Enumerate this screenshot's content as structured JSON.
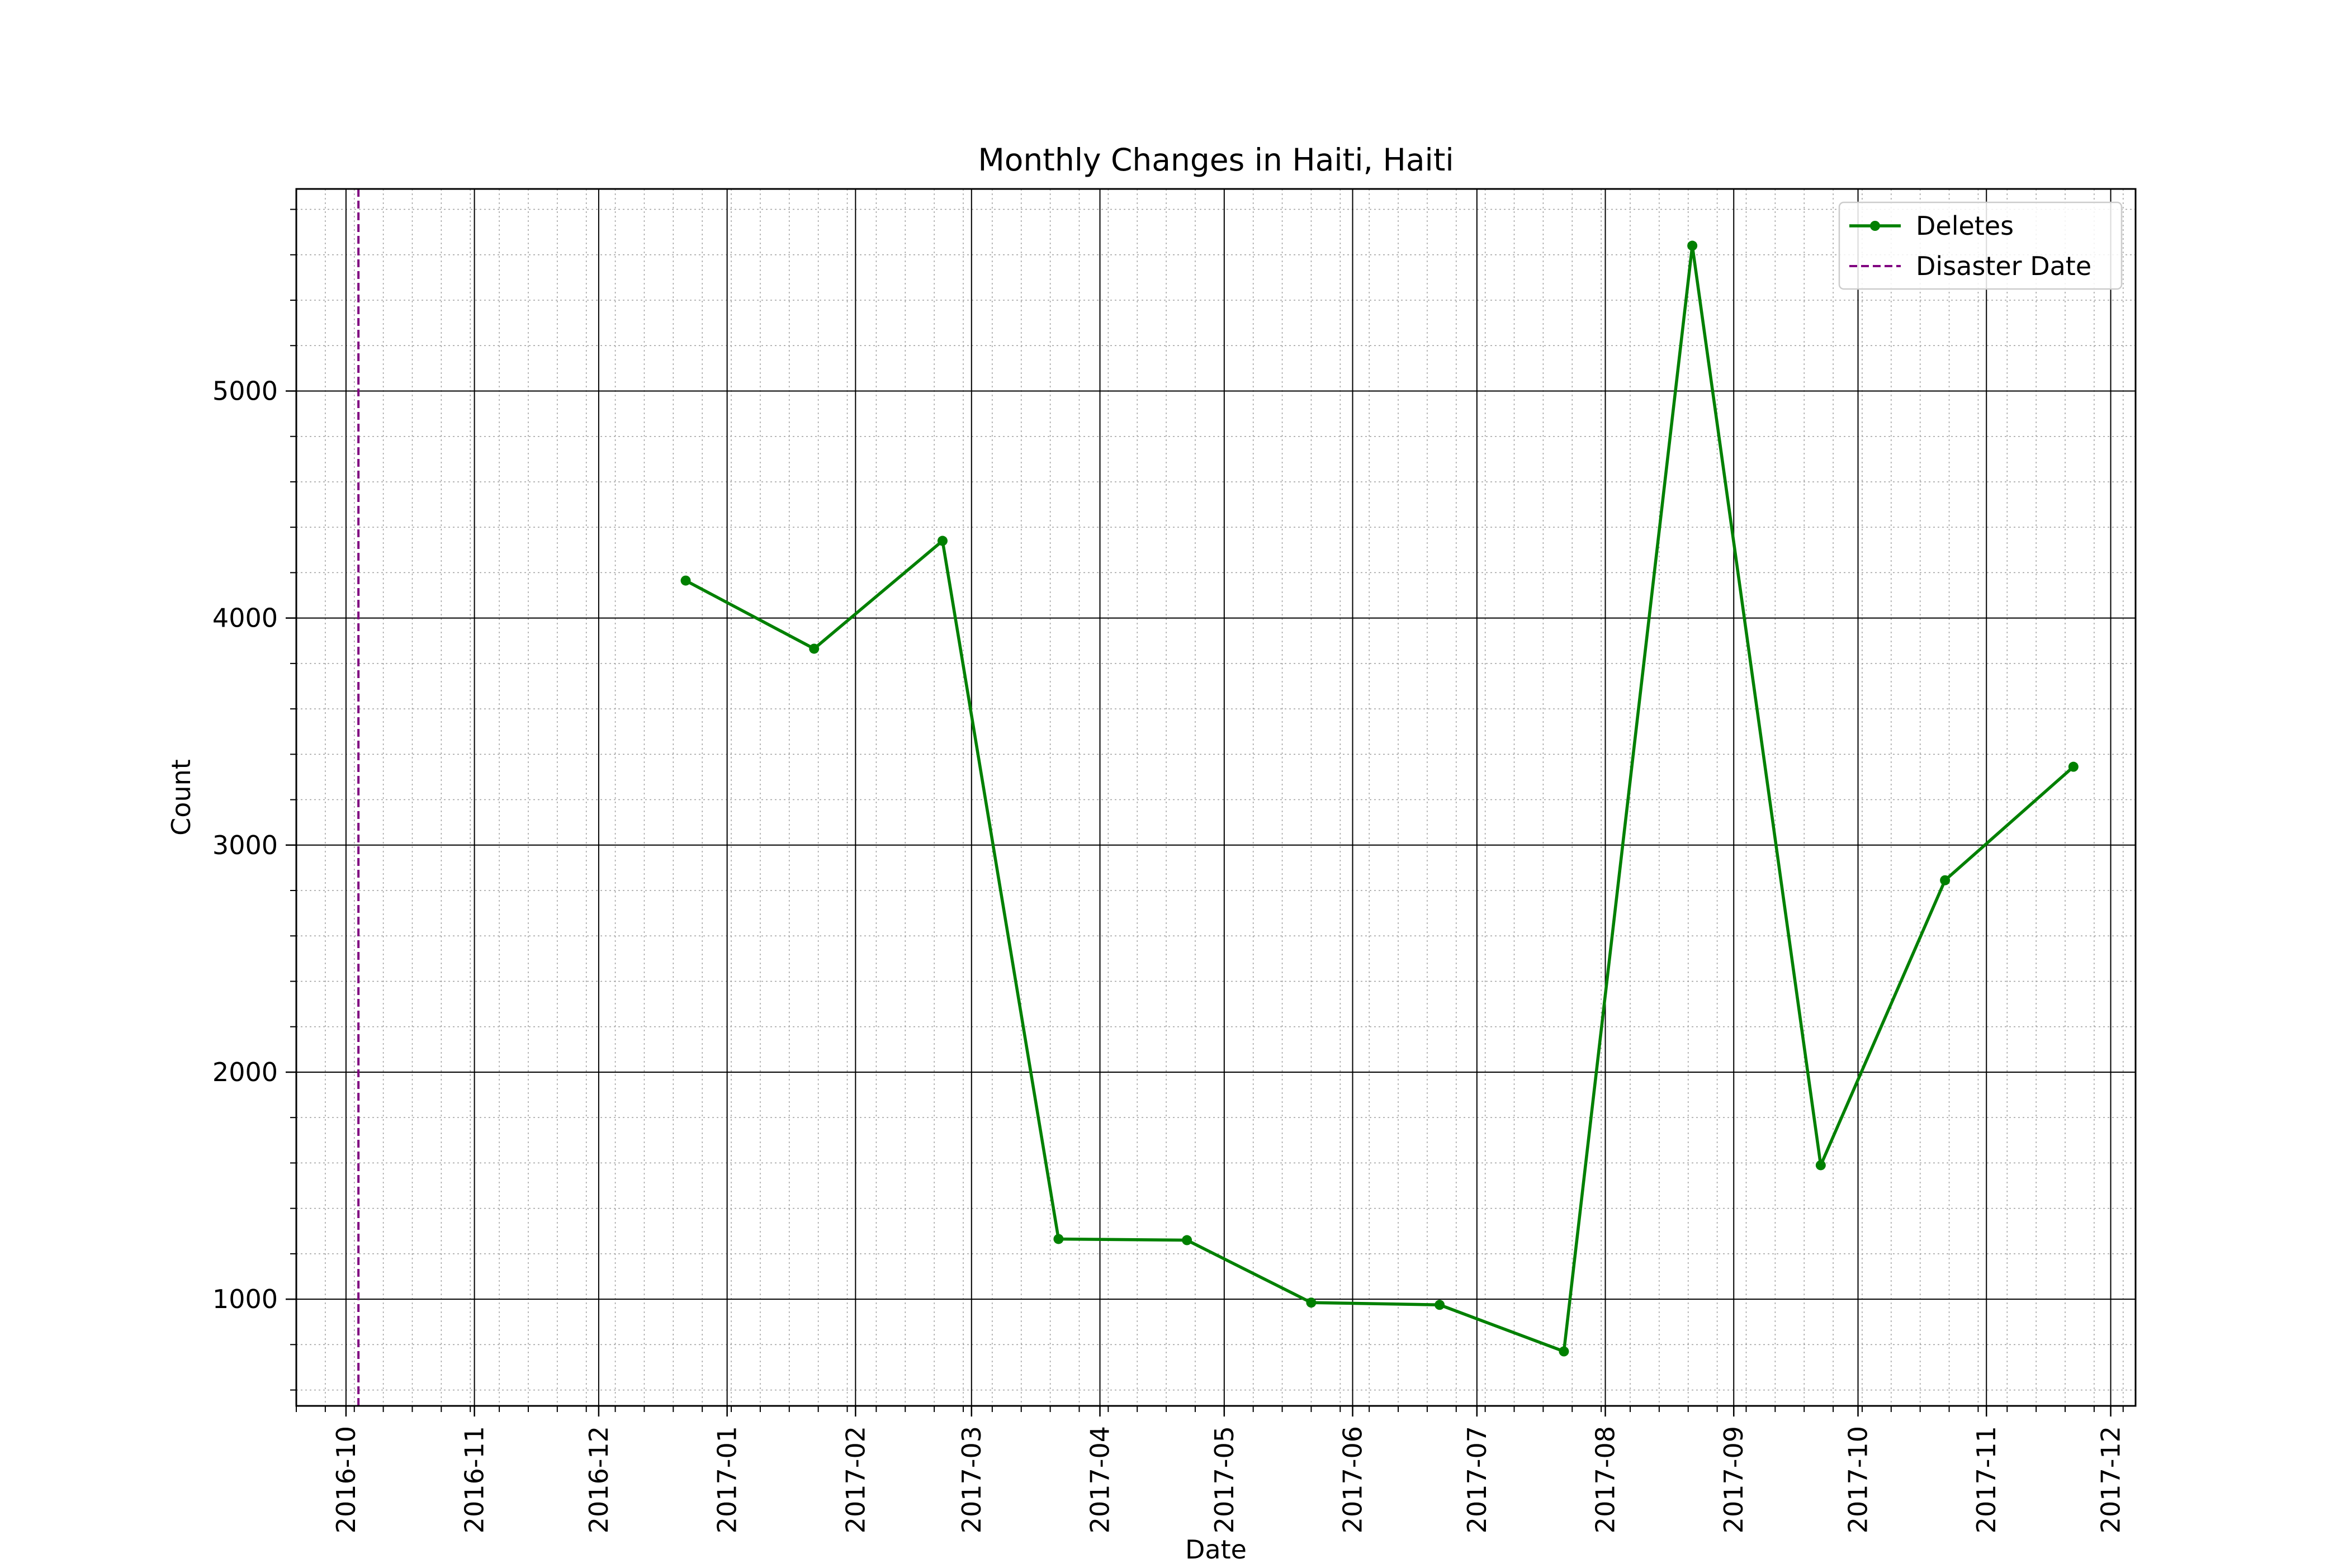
{
  "chart_data": {
    "type": "line",
    "title": "Monthly Changes in Haiti, Haiti",
    "xlabel": "Date",
    "ylabel": "Count",
    "xlim": [
      "2016-09-19",
      "2017-12-07"
    ],
    "ylim": [
      530,
      5890
    ],
    "grid": {
      "major": true,
      "minor": true,
      "minor_style": "dotted"
    },
    "legend_position": "top-right",
    "x_ticks": [
      "2016-10",
      "2016-11",
      "2016-12",
      "2017-01",
      "2017-02",
      "2017-03",
      "2017-04",
      "2017-05",
      "2017-06",
      "2017-07",
      "2017-08",
      "2017-09",
      "2017-10",
      "2017-11",
      "2017-12"
    ],
    "y_ticks": [
      1000,
      2000,
      3000,
      4000,
      5000
    ],
    "series": [
      {
        "name": "Deletes",
        "color": "#008000",
        "marker": "circle",
        "x": [
          "2016-12-22",
          "2017-01-22",
          "2017-02-22",
          "2017-03-22",
          "2017-04-22",
          "2017-05-22",
          "2017-06-22",
          "2017-07-22",
          "2017-08-22",
          "2017-09-22",
          "2017-10-22",
          "2017-11-22"
        ],
        "y": [
          4165,
          3865,
          4340,
          1265,
          1260,
          985,
          975,
          770,
          5640,
          1590,
          2845,
          3345
        ]
      }
    ],
    "reference_lines": [
      {
        "name": "Disaster Date",
        "x": "2016-10-04",
        "color": "#800080",
        "style": "dashed"
      }
    ]
  }
}
